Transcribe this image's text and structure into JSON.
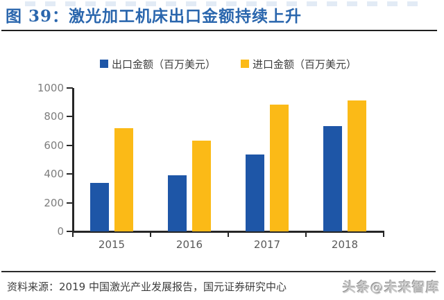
{
  "figure": {
    "title": "图 39：激光加工机床出口金额持续上升",
    "source": "资料来源：2019 中国激光产业发展报告，国元证券研究中心",
    "watermark": "头条@未来智库"
  },
  "chart_data": {
    "type": "bar",
    "title": "激光加工机床出口金额持续上升",
    "categories": [
      "2015",
      "2016",
      "2017",
      "2018"
    ],
    "series": [
      {
        "name": "出口金额（百万美元）",
        "color": "#1e56a7",
        "values": [
          340,
          390,
          535,
          735
        ]
      },
      {
        "name": "进口金额（百万美元）",
        "color": "#fbba17",
        "values": [
          720,
          635,
          885,
          915
        ]
      }
    ],
    "xlabel": "",
    "ylabel": "",
    "ylim": [
      0,
      1000
    ],
    "yticks": [
      0,
      200,
      400,
      600,
      800,
      1000
    ],
    "grid": false,
    "legend_position": "top-center",
    "unit": "百万美元"
  },
  "colors": {
    "title_text": "#2a66ad",
    "export_bar": "#1e56a7",
    "import_bar": "#fbba17",
    "axis": "#262626",
    "ytick_label": "#7d7d7d",
    "xtick_label": "#595959",
    "legend_text": "#3c3c3c",
    "source_text": "#3d3d3d",
    "watermark_text": "#c9c9c9"
  }
}
